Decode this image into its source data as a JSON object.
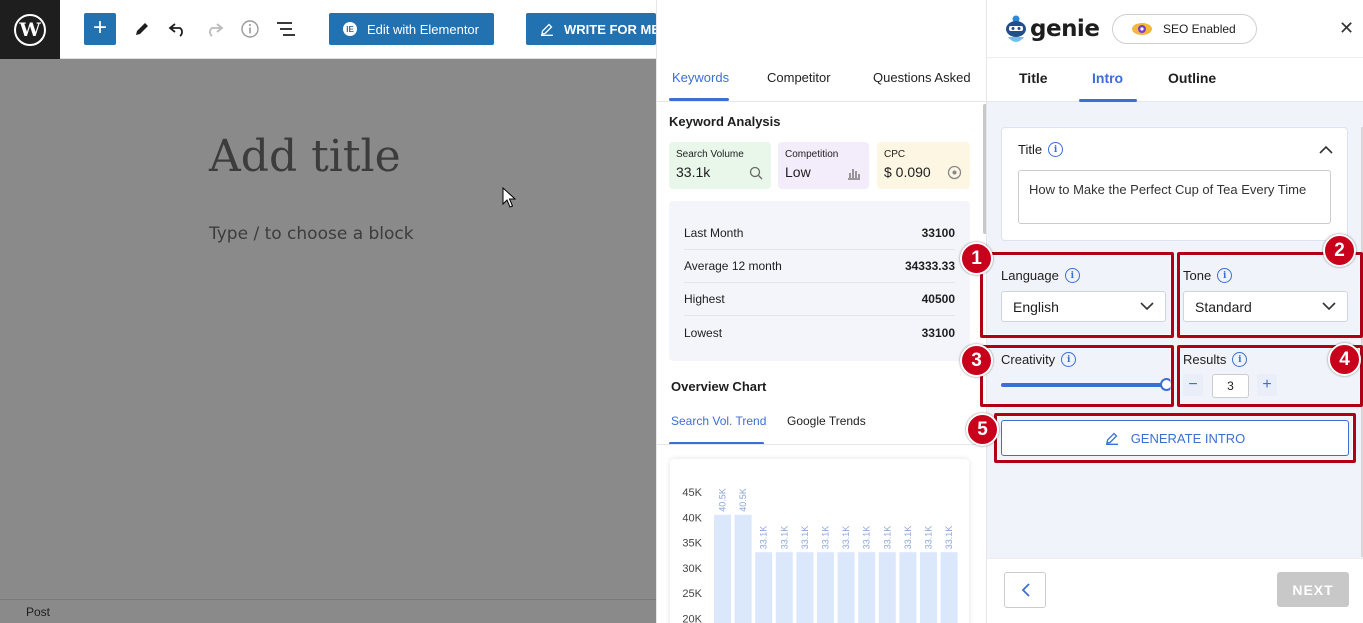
{
  "toolbar": {
    "logo_glyph": "W",
    "add_glyph": "+",
    "elementor_label": "Edit with Elementor",
    "elementor_icon_glyph": "IE",
    "write_label": "WRITE FOR ME"
  },
  "editor": {
    "title_placeholder": "Add title",
    "block_placeholder": "Type / to choose a block",
    "status_label": "Post"
  },
  "keywords_panel": {
    "tabs": [
      "Keywords",
      "Competitor",
      "Questions Asked"
    ],
    "analysis_title": "Keyword Analysis",
    "metrics": [
      {
        "label": "Search Volume",
        "value": "33.1k",
        "icon": "search-icon",
        "color": "#e8f7ea"
      },
      {
        "label": "Competition",
        "value": "Low",
        "icon": "bar-chart-icon",
        "color": "#f3ecfa"
      },
      {
        "label": "CPC",
        "value": "$ 0.090",
        "icon": "dollar-cycle-icon",
        "color": "#fdf6e3"
      }
    ],
    "stats": [
      {
        "label": "Last Month",
        "value": "33100"
      },
      {
        "label": "Average 12 month",
        "value": "34333.33"
      },
      {
        "label": "Highest",
        "value": "40500"
      },
      {
        "label": "Lowest",
        "value": "33100"
      }
    ],
    "overview_title": "Overview Chart",
    "chart_tabs": [
      "Search Vol. Trend",
      "Google Trends"
    ]
  },
  "chart_data": {
    "type": "bar",
    "y_ticks": [
      "45K",
      "40K",
      "35K",
      "30K",
      "25K",
      "20K"
    ],
    "ylim": [
      20000,
      45000
    ],
    "values": [
      40500,
      40500,
      33100,
      33100,
      33100,
      33100,
      33100,
      33100,
      33100,
      33100,
      33100,
      33100
    ],
    "data_labels": [
      "40.5K",
      "40.5K",
      "33.1K",
      "33.1K",
      "33.1K",
      "33.1K",
      "33.1K",
      "33.1K",
      "33.1K",
      "33.1K",
      "33.1K",
      "33.1K"
    ],
    "bar_color": "#dbe7fb",
    "label_color": "#8aa6d8"
  },
  "genie": {
    "logo_text": "genie",
    "seo_label": "SEO Enabled",
    "close_glyph": "✕",
    "tabs": [
      "Title",
      "Intro",
      "Outline"
    ],
    "title_label": "Title",
    "title_value": "How to Make the Perfect Cup of Tea Every Time",
    "language_label": "Language",
    "language_value": "English",
    "tone_label": "Tone",
    "tone_value": "Standard",
    "creativity_label": "Creativity",
    "creativity_level": 1.0,
    "results_label": "Results",
    "results_value": "3",
    "minus_glyph": "−",
    "plus_glyph": "+",
    "generate_label": "GENERATE INTRO",
    "next_label": "NEXT",
    "info_glyph": "i"
  },
  "annotations": [
    "1",
    "2",
    "3",
    "4",
    "5"
  ],
  "colors": {
    "accent": "#3b6fd4",
    "wp_blue": "#2271b1",
    "annotation": "#b00017"
  }
}
